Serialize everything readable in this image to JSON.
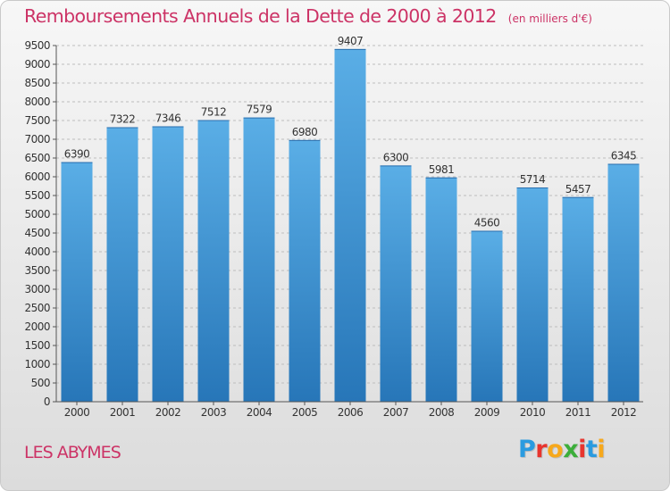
{
  "header": {
    "title": "Remboursements Annuels de la Dette de 2000 à 2012",
    "unit": "(en milliers d'€)"
  },
  "footer": {
    "location": "LES ABYMES",
    "brand": [
      "P",
      "r",
      "o",
      "x",
      "i",
      "t",
      "i"
    ],
    "brand_colors": [
      "#2a9be0",
      "#e8352e",
      "#f7a81b",
      "#3cae3a",
      "#e8352e",
      "#2a9be0",
      "#f7a81b"
    ]
  },
  "chart_data": {
    "type": "bar",
    "categories": [
      "2000",
      "2001",
      "2002",
      "2003",
      "2004",
      "2005",
      "2006",
      "2007",
      "2008",
      "2009",
      "2010",
      "2011",
      "2012"
    ],
    "values": [
      6390,
      7322,
      7346,
      7512,
      7579,
      6980,
      9407,
      6300,
      5981,
      4560,
      5714,
      5457,
      6345
    ],
    "title": "Remboursements Annuels de la Dette de 2000 à 2012",
    "xlabel": "",
    "ylabel": "",
    "ylim": [
      0,
      9500
    ],
    "ytick_step": 500,
    "grid": true,
    "bar_color_top": "#5aaee6",
    "bar_color_bottom": "#2776b8"
  }
}
